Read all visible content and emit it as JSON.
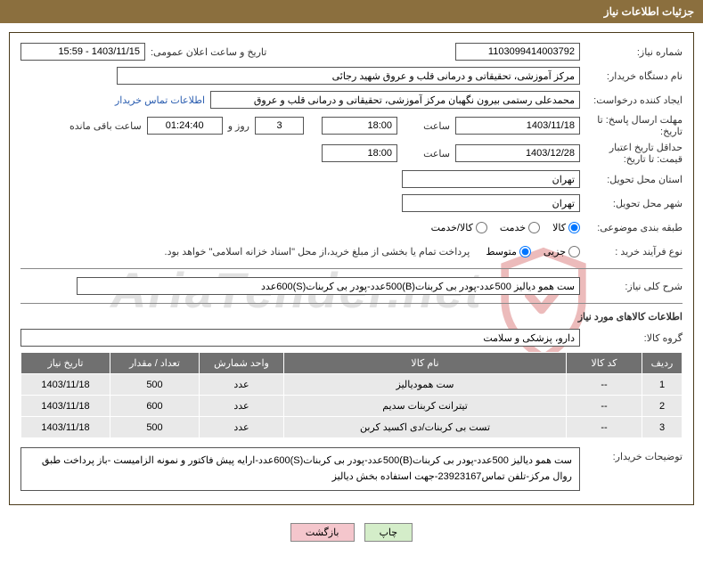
{
  "header_title": "جزئیات اطلاعات نیاز",
  "fields": {
    "need_no_lbl": "شماره نیاز:",
    "need_no": "1103099414003792",
    "announce_lbl": "تاریخ و ساعت اعلان عمومی:",
    "announce": "1403/11/15 - 15:59",
    "buyer_lbl": "نام دستگاه خریدار:",
    "buyer": "مرکز آموزشی، تحقیقاتی و درمانی قلب و عروق شهید رجائی",
    "creator_lbl": "ایجاد کننده درخواست:",
    "creator": "محمدعلی رستمی بیرون نگهبان مرکز آموزشی، تحقیقاتی و درمانی قلب و عروق",
    "contact_link": "اطلاعات تماس خریدار",
    "deadline_lbl": "مهلت ارسال پاسخ: تا تاریخ:",
    "deadline_date": "1403/11/18",
    "hour_lbl": "ساعت",
    "deadline_time": "18:00",
    "days": "3",
    "days_lbl": "روز و",
    "remain": "01:24:40",
    "remain_lbl": "ساعت باقی مانده",
    "validity_lbl": "حداقل تاریخ اعتبار قیمت: تا تاریخ:",
    "validity_date": "1403/12/28",
    "validity_time": "18:00",
    "province_lbl": "استان محل تحویل:",
    "province": "تهران",
    "city_lbl": "شهر محل تحویل:",
    "city": "تهران",
    "category_lbl": "طبقه بندی موضوعی:",
    "cat_opt1": "کالا",
    "cat_opt2": "خدمت",
    "cat_opt3": "کالا/خدمت",
    "process_lbl": "نوع فرآیند خرید :",
    "proc_opt1": "جزیی",
    "proc_opt2": "متوسط",
    "process_note": "پرداخت تمام یا بخشی از مبلغ خرید،از محل \"اسناد خزانه اسلامی\" خواهد بود.",
    "overall_lbl": "شرح کلی نیاز:",
    "overall": "ست همو دیالیز 500عدد-پودر بی کربنات(B)500عدد-پودر بی کربنات(S)600عدد",
    "items_title": "اطلاعات کالاهای مورد نیاز",
    "group_lbl": "گروه کالا:",
    "group": "دارو، پزشکی و سلامت",
    "buyer_notes_lbl": "توضیحات خریدار:",
    "buyer_notes": "ست همو دیالیز 500عدد-پودر بی کربنات(B)500عدد-پودر بی کربنات(S)600عدد-ارایه پیش فاکتور و نمونه الزامیست -باز پرداخت طبق روال مرکز-تلفن تماس23923167-جهت استفاده بخش دیالیز"
  },
  "table": {
    "headers": {
      "row": "ردیف",
      "code": "کد کالا",
      "name": "نام کالا",
      "unit": "واحد شمارش",
      "qty": "تعداد / مقدار",
      "date": "تاریخ نیاز"
    },
    "rows": [
      {
        "row": "1",
        "code": "--",
        "name": "ست همودیالیز",
        "unit": "عدد",
        "qty": "500",
        "date": "1403/11/18"
      },
      {
        "row": "2",
        "code": "--",
        "name": "تیترانت کربنات سدیم",
        "unit": "عدد",
        "qty": "600",
        "date": "1403/11/18"
      },
      {
        "row": "3",
        "code": "--",
        "name": "تست بی کربنات/دی اکسید کربن",
        "unit": "عدد",
        "qty": "500",
        "date": "1403/11/18"
      }
    ]
  },
  "buttons": {
    "print": "چاپ",
    "back": "بازگشت"
  },
  "watermark": "AriaTender.net"
}
